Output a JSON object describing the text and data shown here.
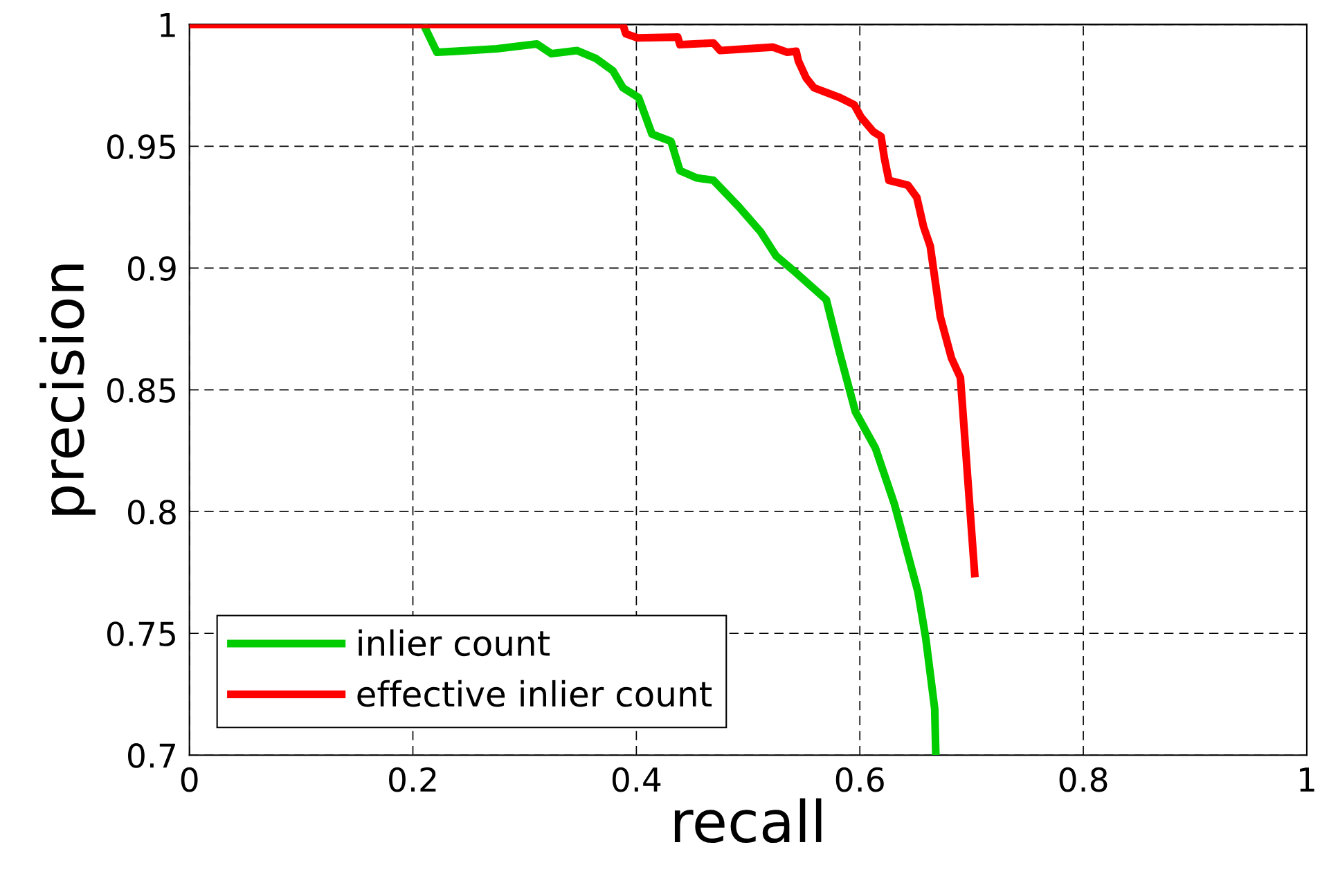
{
  "chart_data": {
    "type": "line",
    "xlabel": "recall",
    "ylabel": "precision",
    "xlim": [
      0,
      1
    ],
    "ylim": [
      0.7,
      1
    ],
    "xticks": [
      0,
      0.2,
      0.4,
      0.6,
      0.8,
      1
    ],
    "yticks": [
      0.7,
      0.75,
      0.8,
      0.85,
      0.9,
      0.95,
      1
    ],
    "grid": true,
    "legend": "bottom left",
    "line_style": "solid",
    "marker": "none",
    "series": [
      {
        "name": "inlier count",
        "color": "#00cc00",
        "x": [
          0.2095,
          0.2215,
          0.238,
          0.275,
          0.311,
          0.324,
          0.347,
          0.364,
          0.379,
          0.388,
          0.402,
          0.414,
          0.431,
          0.439,
          0.454,
          0.469,
          0.492,
          0.511,
          0.525,
          0.543,
          0.57,
          0.582,
          0.596,
          0.614,
          0.631,
          0.652,
          0.659,
          0.667,
          0.668
        ],
        "values": [
          1,
          0.9886,
          0.989,
          0.99,
          0.992,
          0.988,
          0.9893,
          0.986,
          0.981,
          0.974,
          0.97,
          0.955,
          0.952,
          0.94,
          0.937,
          0.936,
          0.925,
          0.915,
          0.905,
          0.898,
          0.887,
          0.865,
          0.841,
          0.826,
          0.803,
          0.767,
          0.748,
          0.719,
          0.7
        ]
      },
      {
        "name": "effective inlier count",
        "color": "#ff0000",
        "x": [
          0,
          0.388,
          0.3905,
          0.401,
          0.437,
          0.439,
          0.469,
          0.475,
          0.522,
          0.535,
          0.543,
          0.545,
          0.552,
          0.559,
          0.582,
          0.595,
          0.601,
          0.612,
          0.619,
          0.622,
          0.626,
          0.643,
          0.651,
          0.657,
          0.663,
          0.672,
          0.682,
          0.69,
          0.703
        ],
        "values": [
          1,
          1,
          0.9962,
          0.9945,
          0.9948,
          0.9917,
          0.9924,
          0.9893,
          0.9907,
          0.9886,
          0.989,
          0.985,
          0.978,
          0.974,
          0.97,
          0.967,
          0.962,
          0.956,
          0.954,
          0.945,
          0.936,
          0.934,
          0.929,
          0.917,
          0.909,
          0.88,
          0.863,
          0.855,
          0.773
        ]
      }
    ]
  }
}
